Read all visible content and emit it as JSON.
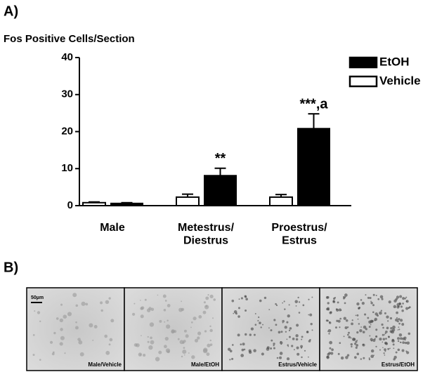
{
  "panel_labels": [
    "A)",
    "B)"
  ],
  "chart_data": {
    "type": "bar",
    "y_label": "Fos Positive Cells/Section",
    "categories": [
      "Male",
      "Metestrus/\nDiestrus",
      "Proestrus/\nEstrus"
    ],
    "series": [
      {
        "name": "EtOH",
        "color": "#000000",
        "values": [
          0.6,
          8.1,
          20.8
        ],
        "errors": [
          0.2,
          2.0,
          4.0
        ],
        "value_annotations": [
          null,
          "**",
          "***,a"
        ]
      },
      {
        "name": "Vehicle",
        "color": "#ffffff",
        "values": [
          0.8,
          2.3,
          2.3
        ],
        "errors": [
          0.2,
          0.8,
          0.7
        ]
      }
    ],
    "ylim": [
      0,
      40
    ],
    "yticks": [
      0,
      10,
      20,
      30,
      40
    ],
    "legend": "upper right"
  },
  "images": [
    {
      "caption": "Male/Vehicle"
    },
    {
      "caption": "Male/EtOH"
    },
    {
      "caption": "Estrus/Vehicle"
    },
    {
      "caption": "Estrus/EtOH"
    }
  ],
  "scale_bar": "50µm"
}
